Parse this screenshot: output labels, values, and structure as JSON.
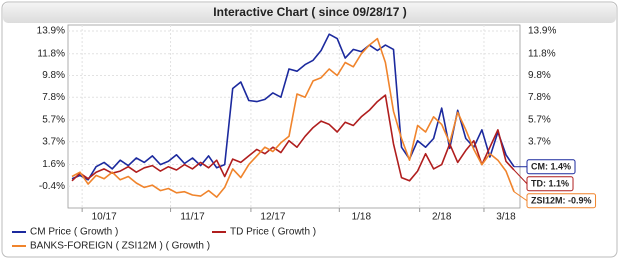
{
  "chart_data": {
    "type": "line",
    "title": "Interactive Chart ( since 09/28/17 )",
    "categories": [
      null,
      null,
      null,
      null,
      "10/17",
      null,
      null,
      null,
      null,
      null,
      null,
      null,
      null,
      null,
      null,
      "11/17",
      null,
      null,
      null,
      null,
      null,
      null,
      null,
      null,
      null,
      "12/17",
      null,
      null,
      null,
      null,
      null,
      null,
      null,
      null,
      null,
      null,
      "1/18",
      null,
      null,
      null,
      null,
      null,
      null,
      null,
      null,
      null,
      "2/18",
      null,
      null,
      null,
      null,
      null,
      null,
      null,
      "3/18",
      null
    ],
    "ylim": [
      -2.4,
      14.45
    ],
    "yticks": [
      {
        "value": -0.4,
        "label": "-0.4%"
      },
      {
        "value": 1.6,
        "label": "1.6%"
      },
      {
        "value": 3.7,
        "label": "3.7%"
      },
      {
        "value": 5.7,
        "label": "5.7%"
      },
      {
        "value": 7.8,
        "label": "7.8%"
      },
      {
        "value": 9.8,
        "label": "9.8%"
      },
      {
        "value": 11.8,
        "label": "11.8%"
      },
      {
        "value": 13.9,
        "label": "13.9%"
      }
    ],
    "grid": true,
    "series": [
      {
        "name": "CM Price ( Growth )",
        "color": "#1c2a9e",
        "end_label": "CM: 1.4%",
        "values": [
          0.3,
          0.6,
          0.2,
          1.4,
          1.8,
          1.2,
          2.0,
          1.5,
          2.2,
          1.8,
          2.4,
          1.6,
          1.9,
          2.5,
          1.7,
          2.2,
          1.5,
          2.4,
          1.3,
          1.6,
          8.6,
          9.2,
          7.5,
          7.4,
          7.6,
          8.2,
          7.8,
          10.4,
          10.2,
          10.8,
          11.2,
          12.1,
          13.6,
          13.2,
          11.4,
          12.2,
          12.0,
          12.6,
          12.1,
          12.6,
          12.2,
          3.2,
          2.1,
          3.8,
          3.2,
          4.0,
          6.8,
          3.1,
          6.6,
          4.0,
          3.2,
          4.8,
          2.3,
          4.6,
          2.5,
          1.4
        ]
      },
      {
        "name": "TD Price ( Growth )",
        "color": "#b01e1e",
        "end_label": "TD: 1.1%",
        "values": [
          0.1,
          0.8,
          0.3,
          0.9,
          1.2,
          0.8,
          1.0,
          1.4,
          0.9,
          1.3,
          1.5,
          1.0,
          1.4,
          1.1,
          1.6,
          1.2,
          1.8,
          1.3,
          2.0,
          0.5,
          2.1,
          1.8,
          2.4,
          3.0,
          2.6,
          3.2,
          2.7,
          3.8,
          3.2,
          4.2,
          5.0,
          5.6,
          5.3,
          4.6,
          5.5,
          5.2,
          6.0,
          6.6,
          7.4,
          8.0,
          3.5,
          0.4,
          0.1,
          1.0,
          2.6,
          1.2,
          1.6,
          3.5,
          1.8,
          2.9,
          3.8,
          1.6,
          3.2,
          4.8,
          1.9,
          1.1
        ]
      },
      {
        "name": "BANKS-FOREIGN ( ZSI12M ) ( Growth )",
        "color": "#f0842c",
        "end_label": "ZSI12M: -0.9%",
        "values": [
          0.5,
          0.9,
          -0.2,
          0.6,
          0.3,
          0.9,
          0.2,
          0.5,
          -0.1,
          -0.5,
          -0.3,
          -0.8,
          -0.6,
          -1.0,
          -0.9,
          -1.2,
          -1.3,
          -0.8,
          -1.4,
          -0.5,
          1.2,
          0.4,
          1.6,
          2.4,
          3.2,
          2.8,
          3.6,
          4.2,
          8.1,
          7.8,
          9.3,
          9.6,
          10.4,
          9.8,
          11.0,
          10.6,
          11.8,
          12.6,
          13.2,
          11.0,
          6.5,
          4.0,
          2.0,
          5.2,
          4.6,
          6.0,
          5.3,
          3.6,
          6.4,
          4.8,
          3.0,
          1.6,
          2.6,
          2.0,
          1.0,
          -0.9
        ]
      }
    ]
  }
}
